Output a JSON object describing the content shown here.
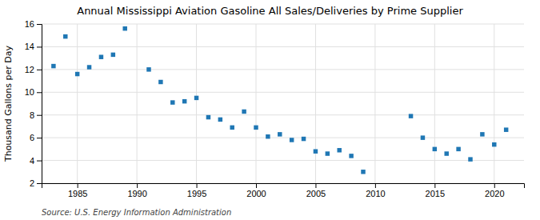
{
  "chart_data": {
    "type": "scatter",
    "title": "Annual Mississippi Aviation Gasoline All Sales/Deliveries by Prime Supplier",
    "ylabel": "Thousand Gallons per Day",
    "source": "Source: U.S. Energy Information Administration",
    "x": [
      1983,
      1984,
      1985,
      1986,
      1987,
      1988,
      1989,
      1991,
      1992,
      1993,
      1994,
      1995,
      1996,
      1997,
      1998,
      1999,
      2000,
      2001,
      2002,
      2003,
      2004,
      2005,
      2006,
      2007,
      2008,
      2009,
      2013,
      2014,
      2015,
      2016,
      2017,
      2018,
      2019,
      2020,
      2021
    ],
    "values": [
      12.3,
      14.9,
      11.6,
      12.2,
      13.1,
      13.3,
      15.6,
      12.0,
      10.9,
      9.1,
      9.2,
      9.5,
      7.8,
      7.6,
      6.9,
      8.3,
      6.9,
      6.1,
      6.3,
      5.8,
      5.9,
      4.8,
      4.6,
      4.9,
      4.4,
      3.0,
      7.9,
      6.0,
      5.0,
      4.6,
      5.0,
      4.1,
      6.3,
      5.4,
      6.7
    ],
    "xlim": [
      1982,
      2022.5
    ],
    "ylim": [
      2,
      16
    ],
    "xticks": [
      1985,
      1990,
      1995,
      2000,
      2005,
      2010,
      2015,
      2020
    ],
    "yticks": [
      2,
      4,
      6,
      8,
      10,
      12,
      14,
      16
    ],
    "grid": true,
    "marker": "square"
  }
}
